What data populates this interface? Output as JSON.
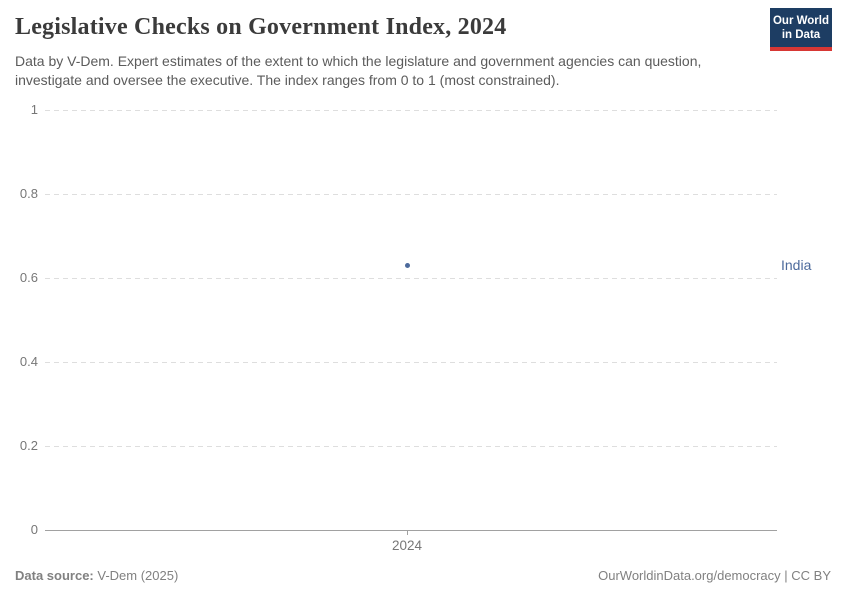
{
  "header": {
    "title": "Legislative Checks on Government Index, 2024",
    "subtitle": "Data by V-Dem. Expert estimates of the extent to which the legislature and government agencies can question, investigate and oversee the executive. The index ranges from 0 to 1 (most constrained).",
    "logo": {
      "line1": "Our World",
      "line2": "in Data"
    }
  },
  "chart_data": {
    "type": "scatter",
    "title": "Legislative Checks on Government Index, 2024",
    "x": [
      2024
    ],
    "series": [
      {
        "name": "India",
        "values": [
          0.63
        ],
        "color": "#4c6a9c"
      }
    ],
    "xlabel": "",
    "ylabel": "",
    "ylim": [
      0,
      1
    ],
    "yticks": [
      0,
      0.2,
      0.4,
      0.6,
      0.8,
      1
    ],
    "xtick_labels": [
      "2024"
    ],
    "grid": "horizontal-dashed",
    "legend_position": "right-of-plot"
  },
  "footer": {
    "source_label": "Data source:",
    "source_value": " V-Dem (2025)",
    "right_text": "OurWorldinData.org/democracy | CC BY"
  },
  "colors": {
    "accent": "#4c6a9c",
    "logo_bg": "#1d3d63",
    "logo_red": "#d73734",
    "grid": "#dedede",
    "axis": "#a1a1a1",
    "muted_text": "#777777"
  }
}
